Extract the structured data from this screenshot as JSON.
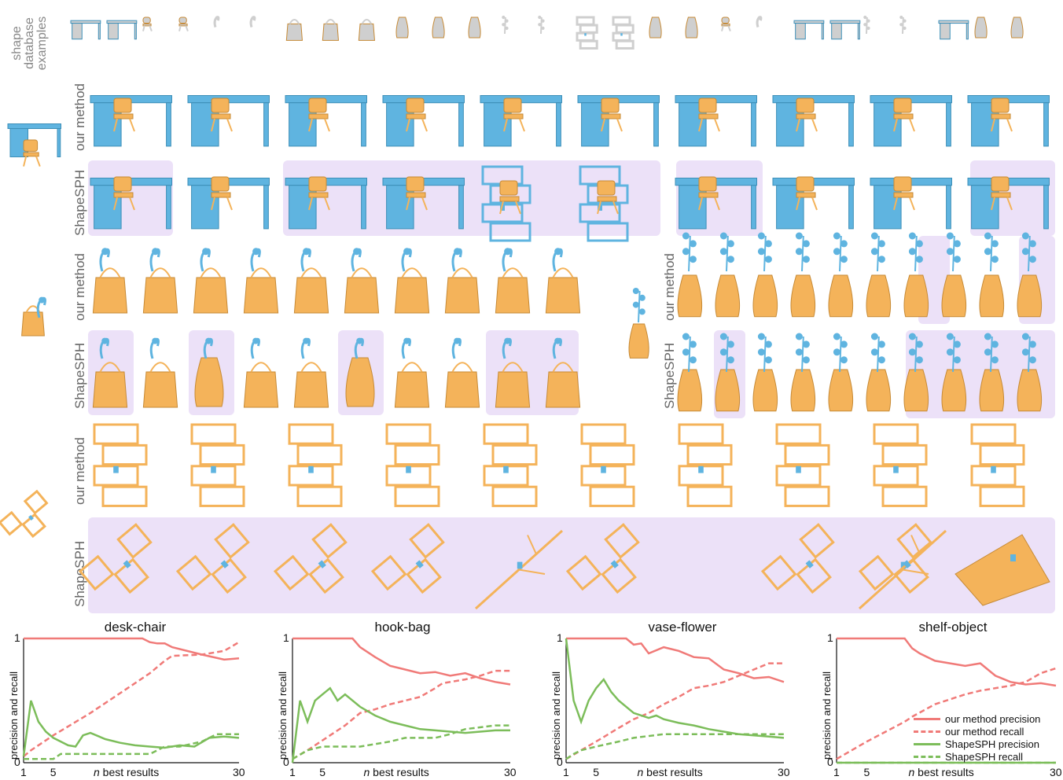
{
  "labels": {
    "database": "shape\ndatabase\nexamples",
    "our_method": "our method",
    "shapesph": "ShapeSPH"
  },
  "colors": {
    "blue": "#5fb4e0",
    "orange": "#f4b35a",
    "highlight": "#ece1f8",
    "db_gray": "#cfcfcf",
    "precision_ours": "#f07a78",
    "recall_ours": "#f07a78",
    "precision_sph": "#7cbd5a",
    "recall_sph": "#7cbd5a"
  },
  "legend": [
    "our method precision",
    "our method recall",
    "ShapeSPH precision",
    "ShapeSPH recall"
  ],
  "chart_data": [
    {
      "type": "line",
      "title": "desk-chair",
      "xlabel": "n best results",
      "ylabel": "precision and recall",
      "xlim": [
        1,
        30
      ],
      "ylim": [
        0,
        1
      ],
      "xticks": [
        "1",
        "5",
        "30"
      ],
      "yticks": [
        "0",
        "1"
      ],
      "series": [
        {
          "name": "our method precision",
          "x": [
            1,
            2,
            5,
            10,
            15,
            17,
            18,
            19,
            20,
            21,
            25,
            28,
            30
          ],
          "y": [
            1,
            1,
            1,
            1,
            1,
            1,
            0.97,
            0.96,
            0.96,
            0.93,
            0.87,
            0.83,
            0.84
          ]
        },
        {
          "name": "our method recall",
          "x": [
            1,
            2,
            5,
            10,
            15,
            18,
            20,
            21,
            25,
            28,
            30
          ],
          "y": [
            0.05,
            0.1,
            0.22,
            0.4,
            0.6,
            0.72,
            0.82,
            0.86,
            0.87,
            0.9,
            0.97
          ]
        },
        {
          "name": "ShapeSPH precision",
          "x": [
            1,
            2,
            3,
            4,
            5,
            6,
            7,
            8,
            9,
            10,
            12,
            14,
            16,
            18,
            20,
            22,
            24,
            26,
            28,
            30
          ],
          "y": [
            0.05,
            0.5,
            0.33,
            0.25,
            0.2,
            0.17,
            0.14,
            0.13,
            0.22,
            0.24,
            0.19,
            0.16,
            0.14,
            0.13,
            0.12,
            0.14,
            0.13,
            0.2,
            0.21,
            0.2
          ]
        },
        {
          "name": "ShapeSPH recall",
          "x": [
            1,
            5,
            6,
            10,
            18,
            20,
            22,
            25,
            27,
            30
          ],
          "y": [
            0.03,
            0.03,
            0.07,
            0.07,
            0.07,
            0.13,
            0.13,
            0.17,
            0.23,
            0.23
          ]
        }
      ]
    },
    {
      "type": "line",
      "title": "hook-bag",
      "xlabel": "n best results",
      "ylabel": "precision and recall",
      "xlim": [
        1,
        30
      ],
      "ylim": [
        0,
        1
      ],
      "xticks": [
        "1",
        "5",
        "30"
      ],
      "yticks": [
        "0",
        "1"
      ],
      "series": [
        {
          "name": "our method precision",
          "x": [
            1,
            2,
            5,
            9,
            10,
            12,
            14,
            16,
            18,
            20,
            22,
            24,
            26,
            28,
            30
          ],
          "y": [
            1,
            1,
            1,
            1,
            0.93,
            0.85,
            0.78,
            0.75,
            0.72,
            0.73,
            0.7,
            0.72,
            0.68,
            0.65,
            0.63
          ]
        },
        {
          "name": "our method recall",
          "x": [
            1,
            3,
            5,
            8,
            10,
            12,
            14,
            16,
            18,
            20,
            21,
            24,
            26,
            28,
            30
          ],
          "y": [
            0.03,
            0.1,
            0.18,
            0.3,
            0.4,
            0.43,
            0.47,
            0.5,
            0.53,
            0.6,
            0.64,
            0.67,
            0.7,
            0.74,
            0.74
          ]
        },
        {
          "name": "ShapeSPH precision",
          "x": [
            1,
            2,
            3,
            4,
            5,
            6,
            7,
            8,
            10,
            12,
            14,
            16,
            18,
            20,
            22,
            24,
            26,
            28,
            30
          ],
          "y": [
            0,
            0.5,
            0.33,
            0.5,
            0.55,
            0.6,
            0.5,
            0.55,
            0.45,
            0.38,
            0.33,
            0.3,
            0.27,
            0.26,
            0.25,
            0.24,
            0.25,
            0.26,
            0.26
          ]
        },
        {
          "name": "ShapeSPH recall",
          "x": [
            1,
            3,
            5,
            10,
            14,
            16,
            20,
            22,
            24,
            28,
            30
          ],
          "y": [
            0.03,
            0.1,
            0.13,
            0.13,
            0.17,
            0.2,
            0.2,
            0.23,
            0.27,
            0.3,
            0.3
          ]
        }
      ]
    },
    {
      "type": "line",
      "title": "vase-flower",
      "xlabel": "n best results",
      "ylabel": "precision and recall",
      "xlim": [
        1,
        30
      ],
      "ylim": [
        0,
        1
      ],
      "xticks": [
        "1",
        "5",
        "30"
      ],
      "yticks": [
        "0",
        "1"
      ],
      "series": [
        {
          "name": "our method precision",
          "x": [
            1,
            2,
            5,
            6,
            7,
            8,
            9,
            10,
            11,
            12,
            14,
            16,
            18,
            20,
            22,
            24,
            26,
            28,
            30
          ],
          "y": [
            1,
            1,
            1,
            1,
            1,
            1,
            1,
            0.95,
            0.96,
            0.88,
            0.93,
            0.9,
            0.85,
            0.84,
            0.75,
            0.72,
            0.68,
            0.69,
            0.65
          ]
        },
        {
          "name": "our method recall",
          "x": [
            1,
            3,
            5,
            8,
            10,
            12,
            14,
            16,
            18,
            20,
            22,
            24,
            26,
            28,
            30
          ],
          "y": [
            0.03,
            0.1,
            0.17,
            0.28,
            0.35,
            0.4,
            0.47,
            0.53,
            0.6,
            0.62,
            0.65,
            0.7,
            0.75,
            0.8,
            0.8
          ]
        },
        {
          "name": "ShapeSPH precision",
          "x": [
            1,
            2,
            3,
            4,
            5,
            6,
            7,
            8,
            10,
            12,
            13,
            14,
            16,
            18,
            20,
            22,
            24,
            26,
            28,
            30
          ],
          "y": [
            1,
            0.5,
            0.33,
            0.5,
            0.6,
            0.67,
            0.57,
            0.5,
            0.4,
            0.36,
            0.38,
            0.35,
            0.32,
            0.3,
            0.27,
            0.25,
            0.23,
            0.22,
            0.21,
            0.2
          ]
        },
        {
          "name": "ShapeSPH recall",
          "x": [
            1,
            2,
            3,
            5,
            8,
            10,
            14,
            18,
            22,
            26,
            30
          ],
          "y": [
            0.03,
            0.07,
            0.1,
            0.13,
            0.17,
            0.2,
            0.23,
            0.23,
            0.23,
            0.23,
            0.23
          ]
        }
      ]
    },
    {
      "type": "line",
      "title": "shelf-object",
      "xlabel": "n best results",
      "ylabel": "precision and recall",
      "xlim": [
        1,
        30
      ],
      "ylim": [
        0,
        1
      ],
      "xticks": [
        "1",
        "5",
        "30"
      ],
      "yticks": [
        "0",
        "1"
      ],
      "series": [
        {
          "name": "our method precision",
          "x": [
            1,
            5,
            10,
            11,
            12,
            14,
            16,
            18,
            20,
            22,
            24,
            26,
            28,
            30
          ],
          "y": [
            1,
            1,
            1,
            0.92,
            0.88,
            0.82,
            0.8,
            0.78,
            0.8,
            0.7,
            0.65,
            0.63,
            0.64,
            0.62
          ]
        },
        {
          "name": "our method recall",
          "x": [
            1,
            5,
            10,
            11,
            14,
            18,
            20,
            24,
            26,
            28,
            30
          ],
          "y": [
            0.03,
            0.17,
            0.33,
            0.37,
            0.47,
            0.55,
            0.58,
            0.62,
            0.65,
            0.72,
            0.76
          ]
        },
        {
          "name": "ShapeSPH precision",
          "x": [
            1,
            30
          ],
          "y": [
            0,
            0
          ]
        },
        {
          "name": "ShapeSPH recall",
          "x": [
            1,
            30
          ],
          "y": [
            0,
            0
          ]
        }
      ]
    }
  ]
}
